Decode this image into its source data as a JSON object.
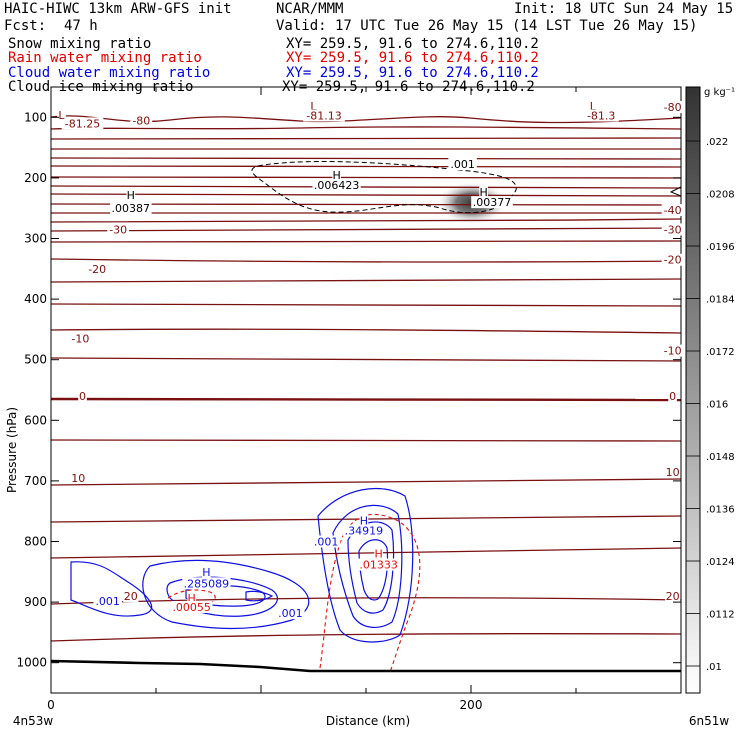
{
  "header": {
    "title_left": "HAIC-HIWC 13km ARW-GFS init",
    "title_center": "NCAR/MMM",
    "init": "Init: 18 UTC Sun 24 May 15",
    "fcst_label": "Fcst:",
    "fcst_value": "47 h",
    "valid": "Valid: 17 UTC Tue 26 May 15 (14 LST Tue 26 May 15)",
    "fields": [
      {
        "name": "Snow mixing ratio",
        "xy": "XY= 259.5, 91.6 to 274.6,110.2",
        "color": "#000000"
      },
      {
        "name": "Rain water mixing ratio",
        "xy": "XY= 259.5, 91.6 to 274.6,110.2",
        "color": "#dd0000"
      },
      {
        "name": "Cloud water mixing ratio",
        "xy": "XY= 259.5, 91.6 to 274.6,110.2",
        "color": "#0000dd"
      },
      {
        "name": "Cloud ice mixing ratio",
        "xy": "XY= 259.5, 91.6 to 274.6,110.2",
        "color": "#000000"
      }
    ]
  },
  "chart_data": {
    "type": "cross-section contour",
    "xlabel": "Distance (km)",
    "ylabel": "Pressure (hPa)",
    "x_ticks": [
      0,
      200
    ],
    "y_ticks": [
      100,
      200,
      300,
      400,
      500,
      600,
      700,
      800,
      900,
      1000
    ],
    "xlim": [
      0,
      300
    ],
    "ylim": [
      1050,
      50
    ],
    "x_endpoints": [
      "4n53w",
      "6n51w"
    ],
    "colorbar": {
      "unit": "g kg⁻¹",
      "ticks": [
        ".022",
        ".0208",
        ".0196",
        ".0184",
        ".0172",
        ".016",
        ".0148",
        ".0136",
        ".0124",
        ".0112",
        ".01"
      ]
    },
    "temperature_labels": [
      {
        "text": "-81.25",
        "x": 15,
        "p": 115
      },
      {
        "text": "-80",
        "x": 43,
        "p": 110
      },
      {
        "text": "L",
        "x": 5,
        "p": 101
      },
      {
        "text": "L",
        "x": 125,
        "p": 86
      },
      {
        "text": "-81.13",
        "x": 130,
        "p": 102
      },
      {
        "text": "L",
        "x": 258,
        "p": 86
      },
      {
        "text": "-81.3",
        "x": 262,
        "p": 102
      },
      {
        "text": "-80",
        "x": 296,
        "p": 88
      },
      {
        "text": "-40",
        "x": 296,
        "p": 258
      },
      {
        "text": "-30",
        "x": 32,
        "p": 290
      },
      {
        "text": "-30",
        "x": 296,
        "p": 290
      },
      {
        "text": "-20",
        "x": 22,
        "p": 355
      },
      {
        "text": "-20",
        "x": 296,
        "p": 340
      },
      {
        "text": "-10",
        "x": 14,
        "p": 470
      },
      {
        "text": "-10",
        "x": 296,
        "p": 490
      },
      {
        "text": "0",
        "x": 15,
        "p": 565
      },
      {
        "text": "0",
        "x": 296,
        "p": 565
      },
      {
        "text": "10",
        "x": 13,
        "p": 700
      },
      {
        "text": "10",
        "x": 296,
        "p": 690
      },
      {
        "text": "20",
        "x": 38,
        "p": 895
      },
      {
        "text": "20",
        "x": 296,
        "p": 895
      }
    ],
    "snow": [
      {
        "text": "H",
        "x": 136,
        "p": 200
      },
      {
        "text": ".006423",
        "x": 136,
        "p": 217
      },
      {
        "text": ".001",
        "x": 196,
        "p": 182
      }
    ],
    "ice": [
      {
        "text": "H",
        "x": 38,
        "p": 233
      },
      {
        "text": ".00387",
        "x": 38,
        "p": 255
      },
      {
        "text": "H",
        "x": 206,
        "p": 228
      },
      {
        "text": ".00377",
        "x": 210,
        "p": 245
      }
    ],
    "cloud_water": [
      {
        "text": "H",
        "x": 149,
        "p": 770
      },
      {
        "text": ".34919",
        "x": 149,
        "p": 787
      },
      {
        "text": ".001",
        "x": 131,
        "p": 805
      },
      {
        "text": "H",
        "x": 74,
        "p": 855
      },
      {
        "text": ".285089",
        "x": 74,
        "p": 874
      },
      {
        "text": ".001",
        "x": 27,
        "p": 903
      },
      {
        "text": ".001",
        "x": 114,
        "p": 923
      }
    ],
    "rain_water": [
      {
        "text": "H",
        "x": 156,
        "p": 825
      },
      {
        "text": ".01333",
        "x": 156,
        "p": 843
      },
      {
        "text": "H",
        "x": 67,
        "p": 898
      },
      {
        "text": ".00055",
        "x": 67,
        "p": 913
      }
    ]
  }
}
